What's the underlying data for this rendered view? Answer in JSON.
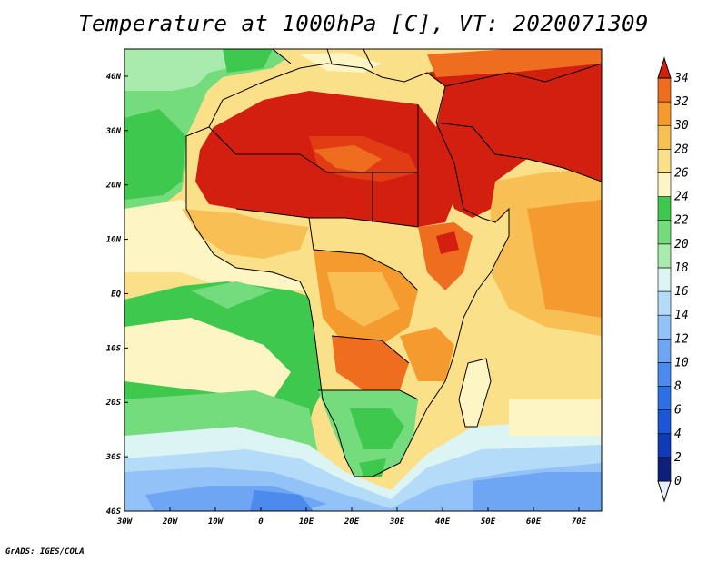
{
  "title": "Temperature at 1000hPa [C], VT: 2020071309",
  "footer": "GrADS: IGES/COLA",
  "map": {
    "lon_range": [
      -30,
      75
    ],
    "lat_range": [
      -40,
      45
    ],
    "lon_ticks": [
      {
        "value": -30,
        "label": "30W"
      },
      {
        "value": -20,
        "label": "20W"
      },
      {
        "value": -10,
        "label": "10W"
      },
      {
        "value": 0,
        "label": "0"
      },
      {
        "value": 10,
        "label": "10E"
      },
      {
        "value": 20,
        "label": "20E"
      },
      {
        "value": 30,
        "label": "30E"
      },
      {
        "value": 40,
        "label": "40E"
      },
      {
        "value": 50,
        "label": "50E"
      },
      {
        "value": 60,
        "label": "60E"
      },
      {
        "value": 70,
        "label": "70E"
      }
    ],
    "lat_ticks": [
      {
        "value": 40,
        "label": "40N"
      },
      {
        "value": 30,
        "label": "30N"
      },
      {
        "value": 20,
        "label": "20N"
      },
      {
        "value": 10,
        "label": "10N"
      },
      {
        "value": 0,
        "label": "EQ"
      },
      {
        "value": -10,
        "label": "10S"
      },
      {
        "value": -20,
        "label": "20S"
      },
      {
        "value": -30,
        "label": "30S"
      },
      {
        "value": -40,
        "label": "40S"
      }
    ]
  },
  "colorbar": {
    "levels": [
      {
        "value": 0,
        "label": "0",
        "color": "#0d1f7a"
      },
      {
        "value": 2,
        "label": "2",
        "color": "#0f3ab8"
      },
      {
        "value": 4,
        "label": "4",
        "color": "#1c55d6"
      },
      {
        "value": 6,
        "label": "6",
        "color": "#2f6fe4"
      },
      {
        "value": 8,
        "label": "8",
        "color": "#4c8aee"
      },
      {
        "value": 10,
        "label": "10",
        "color": "#6ea6f4"
      },
      {
        "value": 12,
        "label": "12",
        "color": "#92c2f7"
      },
      {
        "value": 14,
        "label": "14",
        "color": "#b4dcf8"
      },
      {
        "value": 16,
        "label": "16",
        "color": "#dcf4f3"
      },
      {
        "value": 18,
        "label": "18",
        "color": "#a8ebac"
      },
      {
        "value": 20,
        "label": "20",
        "color": "#74dc7c"
      },
      {
        "value": 22,
        "label": "22",
        "color": "#3fc84e"
      },
      {
        "value": 24,
        "label": "24",
        "color": "#fdf6c4"
      },
      {
        "value": 26,
        "label": "26",
        "color": "#fbe08a"
      },
      {
        "value": 28,
        "label": "28",
        "color": "#f8bf55"
      },
      {
        "value": 30,
        "label": "30",
        "color": "#f59a2e"
      },
      {
        "value": 32,
        "label": "32",
        "color": "#ee6d1f"
      },
      {
        "value": 34,
        "label": "34",
        "color": "#e23c14"
      }
    ],
    "under_color": "#e8ecfb",
    "over_color": "#d21f10"
  },
  "chart_data": {
    "type": "heatmap",
    "title": "Temperature at 1000hPa [C], VT: 2020071309",
    "variable": "Temperature at 1000hPa",
    "units": "C",
    "valid_time": "2020071309",
    "x_range": [
      -30,
      75
    ],
    "y_range": [
      -40,
      45
    ],
    "levels": [
      0,
      2,
      4,
      6,
      8,
      10,
      12,
      14,
      16,
      18,
      20,
      22,
      24,
      26,
      28,
      30,
      32,
      34
    ]
  }
}
